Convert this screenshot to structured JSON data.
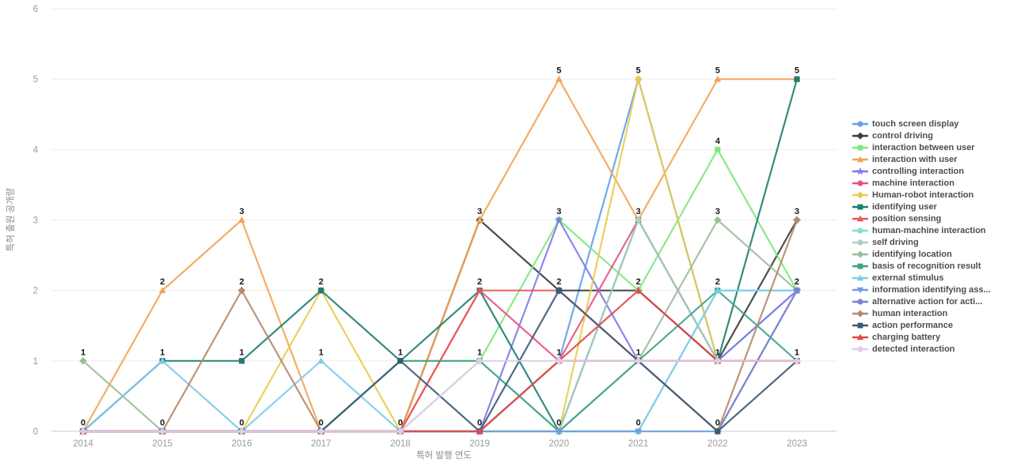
{
  "chart_data": {
    "type": "line",
    "title": "",
    "xlabel": "특허 발행 연도",
    "ylabel": "특허 출원 공개량",
    "x": [
      2014,
      2015,
      2016,
      2017,
      2018,
      2019,
      2020,
      2021,
      2022,
      2023
    ],
    "ylim": [
      0,
      6
    ],
    "y_ticks": [
      0,
      1,
      2,
      3,
      4,
      5,
      6
    ],
    "grid": "horizontal",
    "legend_position": "right",
    "point_value_labels_shown": true,
    "series": [
      {
        "name": "touch screen display",
        "color": "#64A0E8",
        "marker": "circle",
        "values": [
          0,
          0,
          0,
          0,
          0,
          0,
          1,
          5,
          1,
          2
        ]
      },
      {
        "name": "control driving",
        "color": "#3B3B3B",
        "marker": "diamond",
        "values": [
          0,
          0,
          0,
          0,
          0,
          3,
          2,
          2,
          1,
          3
        ]
      },
      {
        "name": "interaction between user",
        "color": "#7DE87D",
        "marker": "square",
        "values": [
          0,
          0,
          0,
          0,
          1,
          1,
          3,
          2,
          4,
          2
        ]
      },
      {
        "name": "interaction with user",
        "color": "#F5A353",
        "marker": "triangle",
        "values": [
          0,
          2,
          3,
          0,
          0,
          3,
          5,
          3,
          5,
          5
        ]
      },
      {
        "name": "controlling interaction",
        "color": "#7D7BE8",
        "marker": "star",
        "values": [
          0,
          0,
          0,
          0,
          0,
          0,
          3,
          1,
          1,
          2
        ]
      },
      {
        "name": "machine interaction",
        "color": "#E8527F",
        "marker": "circle",
        "values": [
          0,
          0,
          0,
          0,
          0,
          2,
          1,
          3,
          1,
          1
        ]
      },
      {
        "name": "Human-robot interaction",
        "color": "#E8CC4D",
        "marker": "diamond",
        "values": [
          0,
          0,
          0,
          2,
          0,
          0,
          0,
          5,
          1,
          1
        ]
      },
      {
        "name": "identifying user",
        "color": "#1F7D72",
        "marker": "square",
        "values": [
          0,
          1,
          1,
          2,
          1,
          2,
          0,
          3,
          1,
          5
        ]
      },
      {
        "name": "position sensing",
        "color": "#EB5757",
        "marker": "triangle",
        "values": [
          0,
          0,
          0,
          0,
          0,
          2,
          2,
          1,
          1,
          1
        ]
      },
      {
        "name": "human-machine interaction",
        "color": "#7FE0D0",
        "marker": "circle",
        "values": [
          0,
          0,
          0,
          0,
          0,
          0,
          0,
          0,
          2,
          2
        ]
      },
      {
        "name": "self driving",
        "color": "#AFCFC4",
        "marker": "circle",
        "values": [
          0,
          0,
          0,
          0,
          0,
          1,
          0,
          3,
          1,
          1
        ]
      },
      {
        "name": "identifying location",
        "color": "#9DBD9A",
        "marker": "diamond",
        "values": [
          1,
          0,
          0,
          0,
          0,
          0,
          0,
          1,
          3,
          2
        ]
      },
      {
        "name": "basis of recognition result",
        "color": "#3FA287",
        "marker": "square",
        "values": [
          0,
          0,
          0,
          0,
          1,
          1,
          0,
          1,
          2,
          1
        ]
      },
      {
        "name": "external stimulus",
        "color": "#7ECBE8",
        "marker": "triangle",
        "values": [
          0,
          1,
          0,
          1,
          0,
          0,
          0,
          0,
          2,
          2
        ]
      },
      {
        "name": "information identifying ass...",
        "color": "#6F9FD8",
        "marker": "triangle-down",
        "values": [
          0,
          0,
          0,
          0,
          0,
          0,
          0,
          0,
          0,
          2
        ]
      },
      {
        "name": "alternative action for acti...",
        "color": "#8080D0",
        "marker": "circle",
        "values": [
          0,
          0,
          0,
          0,
          0,
          0,
          1,
          1,
          0,
          2
        ]
      },
      {
        "name": "human interaction",
        "color": "#B58A6A",
        "marker": "diamond",
        "values": [
          0,
          0,
          2,
          0,
          0,
          0,
          1,
          1,
          0,
          3
        ]
      },
      {
        "name": "action performance",
        "color": "#3A5A78",
        "marker": "square",
        "values": [
          0,
          0,
          0,
          0,
          1,
          0,
          2,
          1,
          0,
          1
        ]
      },
      {
        "name": "charging battery",
        "color": "#E04848",
        "marker": "triangle",
        "values": [
          0,
          0,
          0,
          0,
          0,
          0,
          1,
          2,
          1,
          1
        ]
      },
      {
        "name": "detected interaction",
        "color": "#E0CCE8",
        "marker": "diamond",
        "values": [
          0,
          0,
          0,
          0,
          0,
          1,
          1,
          1,
          1,
          1
        ]
      }
    ],
    "colors": {
      "grid_line": "#ECECEC",
      "zero_axis_line": "#C3CBE6",
      "tick_label": "#9A9A9A",
      "axis_title": "#8A8A8A",
      "value_label": "#151515",
      "legend_text": "#4D4D4D",
      "background": "#FFFFFF"
    }
  }
}
